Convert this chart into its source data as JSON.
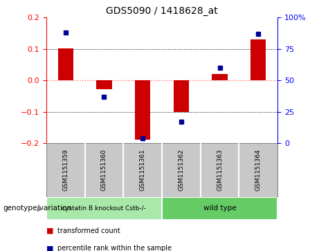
{
  "title": "GDS5090 / 1418628_at",
  "samples": [
    "GSM1151359",
    "GSM1151360",
    "GSM1151361",
    "GSM1151362",
    "GSM1151363",
    "GSM1151364"
  ],
  "red_bars": [
    0.102,
    -0.028,
    -0.19,
    -0.1,
    0.02,
    0.13
  ],
  "blue_dots": [
    88,
    37,
    4,
    17,
    60,
    87
  ],
  "ylim_left": [
    -0.2,
    0.2
  ],
  "ylim_right": [
    0,
    100
  ],
  "yticks_left": [
    -0.2,
    -0.1,
    0.0,
    0.1,
    0.2
  ],
  "yticks_right": [
    0,
    25,
    50,
    75,
    100
  ],
  "ytick_labels_right": [
    "0",
    "25",
    "50",
    "75",
    "100%"
  ],
  "genotype_label": "genotype/variation",
  "legend_items": [
    {
      "color": "#cc0000",
      "label": "transformed count"
    },
    {
      "color": "#000099",
      "label": "percentile rank within the sample"
    }
  ],
  "bar_color": "#cc0000",
  "dot_color": "#000099",
  "bar_width": 0.4,
  "bg_color": "#ffffff",
  "plot_bg_color": "#ffffff",
  "grid_color": "#000000",
  "zero_line_color": "#ff6666",
  "sample_bg_color": "#c8c8c8",
  "group1_color": "#a8e8a8",
  "group2_color": "#66cc66",
  "group1_label": "cystatin B knockout Cstb-/-",
  "group2_label": "wild type"
}
